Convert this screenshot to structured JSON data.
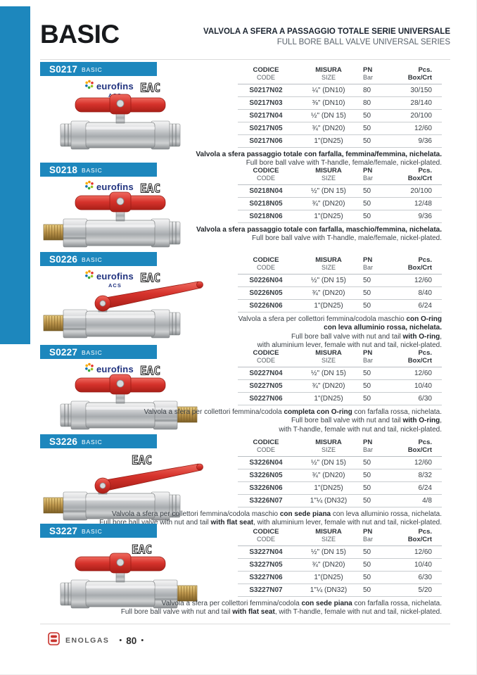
{
  "page": {
    "title": "BASIC",
    "subtitle_it": "VALVOLA A SFERA A PASSAGGIO TOTALE SERIE UNIVERSALE",
    "subtitle_en": "FULL BORE BALL VALVE UNIVERSAL SERIES",
    "colors": {
      "accent_blue": "#1d87bd",
      "handle_red": "#d6332c",
      "brand_red": "#c8332e"
    }
  },
  "footer": {
    "brand": "ENOLGAS",
    "page_number": "80",
    "bullet": "•"
  },
  "table_headers": {
    "code_it": "CODICE",
    "code_en": "CODE",
    "size_it": "MISURA",
    "size_en": "SIZE",
    "pn": "PN",
    "pn_unit": "Bar",
    "pcs": "Pcs. Box/Crt"
  },
  "logos": {
    "eurofins": "eurofins",
    "acs": "ACS",
    "eac": "EAC"
  },
  "sections": [
    {
      "id": "S0217",
      "tag": "BASIC",
      "eurofins": true,
      "eac": true,
      "image": {
        "handle": "tee",
        "brass": "none"
      },
      "rows": [
        {
          "code": "S0217N02",
          "size": "¼\" (DN10)",
          "pn": "80",
          "pcs": "30/150"
        },
        {
          "code": "S0217N03",
          "size": "⅜\" (DN10)",
          "pn": "80",
          "pcs": "28/140"
        },
        {
          "code": "S0217N04",
          "size": "½\" (DN 15)",
          "pn": "50",
          "pcs": "20/100"
        },
        {
          "code": "S0217N05",
          "size": "¾\" (DN20)",
          "pn": "50",
          "pcs": "12/60"
        },
        {
          "code": "S0217N06",
          "size": "1\"(DN25)",
          "pn": "50",
          "pcs": "9/36"
        }
      ],
      "desc": [
        [
          {
            "t": "Valvola a sfera passaggio totale con farfalla, femmina/femmina, nichelata.",
            "b": true
          }
        ],
        [
          {
            "t": "Full bore ball valve with T-handle, female/female, nickel-plated.",
            "b": false
          }
        ]
      ]
    },
    {
      "id": "S0218",
      "tag": "BASIC",
      "eurofins": true,
      "eac": true,
      "image": {
        "handle": "tee",
        "brass": "left"
      },
      "rows": [
        {
          "code": "S0218N04",
          "size": "½\" (DN 15)",
          "pn": "50",
          "pcs": "20/100"
        },
        {
          "code": "S0218N05",
          "size": "¾\" (DN20)",
          "pn": "50",
          "pcs": "12/48"
        },
        {
          "code": "S0218N06",
          "size": "1\"(DN25)",
          "pn": "50",
          "pcs": "9/36"
        }
      ],
      "desc": [
        [
          {
            "t": "Valvola a sfera passaggio totale con farfalla, maschio/femmina, nichelata.",
            "b": true
          }
        ],
        [
          {
            "t": "Full bore ball valve with T-handle, male/female, nickel-plated.",
            "b": false
          }
        ]
      ]
    },
    {
      "id": "S0226",
      "tag": "BASIC",
      "eurofins": true,
      "eac": true,
      "image": {
        "handle": "lever",
        "brass": "left"
      },
      "rows": [
        {
          "code": "S0226N04",
          "size": "½\" (DN 15)",
          "pn": "50",
          "pcs": "12/60"
        },
        {
          "code": "S0226N05",
          "size": "¾\" (DN20)",
          "pn": "50",
          "pcs": "8/40"
        },
        {
          "code": "S0226N06",
          "size": "1\"(DN25)",
          "pn": "50",
          "pcs": "6/24"
        }
      ],
      "desc": [
        [
          {
            "t": "Valvola a sfera per collettori femmina/codola maschio ",
            "b": false
          },
          {
            "t": "con O-ring",
            "b": true
          }
        ],
        [
          {
            "t": "con leva alluminio rossa, nichelata.",
            "b": true
          }
        ],
        [
          {
            "t": "Full bore ball valve with nut and tail ",
            "b": false
          },
          {
            "t": "with O-ring",
            "b": true
          },
          {
            "t": ",",
            "b": false
          }
        ],
        [
          {
            "t": "with aluminium lever, female with nut and tail, nickel-plated.",
            "b": false
          }
        ]
      ]
    },
    {
      "id": "S0227",
      "tag": "BASIC",
      "eurofins": true,
      "eac": true,
      "image": {
        "handle": "tee",
        "brass": "right"
      },
      "rows": [
        {
          "code": "S0227N04",
          "size": "½\" (DN 15)",
          "pn": "50",
          "pcs": "12/60"
        },
        {
          "code": "S0227N05",
          "size": "¾\" (DN20)",
          "pn": "50",
          "pcs": "10/40"
        },
        {
          "code": "S0227N06",
          "size": "1\"(DN25)",
          "pn": "50",
          "pcs": "6/30"
        }
      ],
      "desc": [
        [
          {
            "t": "Valvola a sfera per collettori femmina/codola ",
            "b": false
          },
          {
            "t": "completa con O-ring",
            "b": true
          },
          {
            "t": " con farfalla rossa, nichelata.",
            "b": false
          }
        ],
        [
          {
            "t": "Full bore ball valve with nut and tail ",
            "b": false
          },
          {
            "t": "with O-ring",
            "b": true
          },
          {
            "t": ",",
            "b": false
          }
        ],
        [
          {
            "t": "with T-handle, female with nut and tail, nickel-plated.",
            "b": false
          }
        ]
      ]
    },
    {
      "id": "S3226",
      "tag": "BASIC",
      "eurofins": false,
      "eac": true,
      "image": {
        "handle": "lever",
        "brass": "left"
      },
      "rows": [
        {
          "code": "S3226N04",
          "size": "½\" (DN 15)",
          "pn": "50",
          "pcs": "12/60"
        },
        {
          "code": "S3226N05",
          "size": "¾\" (DN20)",
          "pn": "50",
          "pcs": "8/32"
        },
        {
          "code": "S3226N06",
          "size": "1\"(DN25)",
          "pn": "50",
          "pcs": "6/24"
        },
        {
          "code": "S3226N07",
          "size": "1\"¼ (DN32)",
          "pn": "50",
          "pcs": "4/8"
        }
      ],
      "desc": [
        [
          {
            "t": "Valvola a sfera per collettori femmina/codola maschio ",
            "b": false
          },
          {
            "t": "con sede piana",
            "b": true
          },
          {
            "t": " con leva alluminio rossa, nichelata.",
            "b": false
          }
        ],
        [
          {
            "t": "Full bore ball valve with nut and tail ",
            "b": false
          },
          {
            "t": "with flat seat",
            "b": true
          },
          {
            "t": ", with aluminium lever, female with nut and tail, nickel-plated.",
            "b": false
          }
        ]
      ]
    },
    {
      "id": "S3227",
      "tag": "BASIC",
      "eurofins": false,
      "eac": true,
      "image": {
        "handle": "tee",
        "brass": "right"
      },
      "rows": [
        {
          "code": "S3227N04",
          "size": "½\" (DN 15)",
          "pn": "50",
          "pcs": "12/60"
        },
        {
          "code": "S3227N05",
          "size": "¾\" (DN20)",
          "pn": "50",
          "pcs": "10/40"
        },
        {
          "code": "S3227N06",
          "size": "1\"(DN25)",
          "pn": "50",
          "pcs": "6/30"
        },
        {
          "code": "S3227N07",
          "size": "1\"¼ (DN32)",
          "pn": "50",
          "pcs": "5/20"
        }
      ],
      "desc": [
        [
          {
            "t": "Valvola a sfera per collettori femmina/codola ",
            "b": false
          },
          {
            "t": "con sede piana",
            "b": true
          },
          {
            "t": " con farfalla rossa, nichelata.",
            "b": false
          }
        ],
        [
          {
            "t": "Full bore ball valve with nut and tail ",
            "b": false
          },
          {
            "t": "with flat seat",
            "b": true
          },
          {
            "t": ", with T-handle, female with nut and tail, nickel-plated.",
            "b": false
          }
        ]
      ]
    }
  ]
}
